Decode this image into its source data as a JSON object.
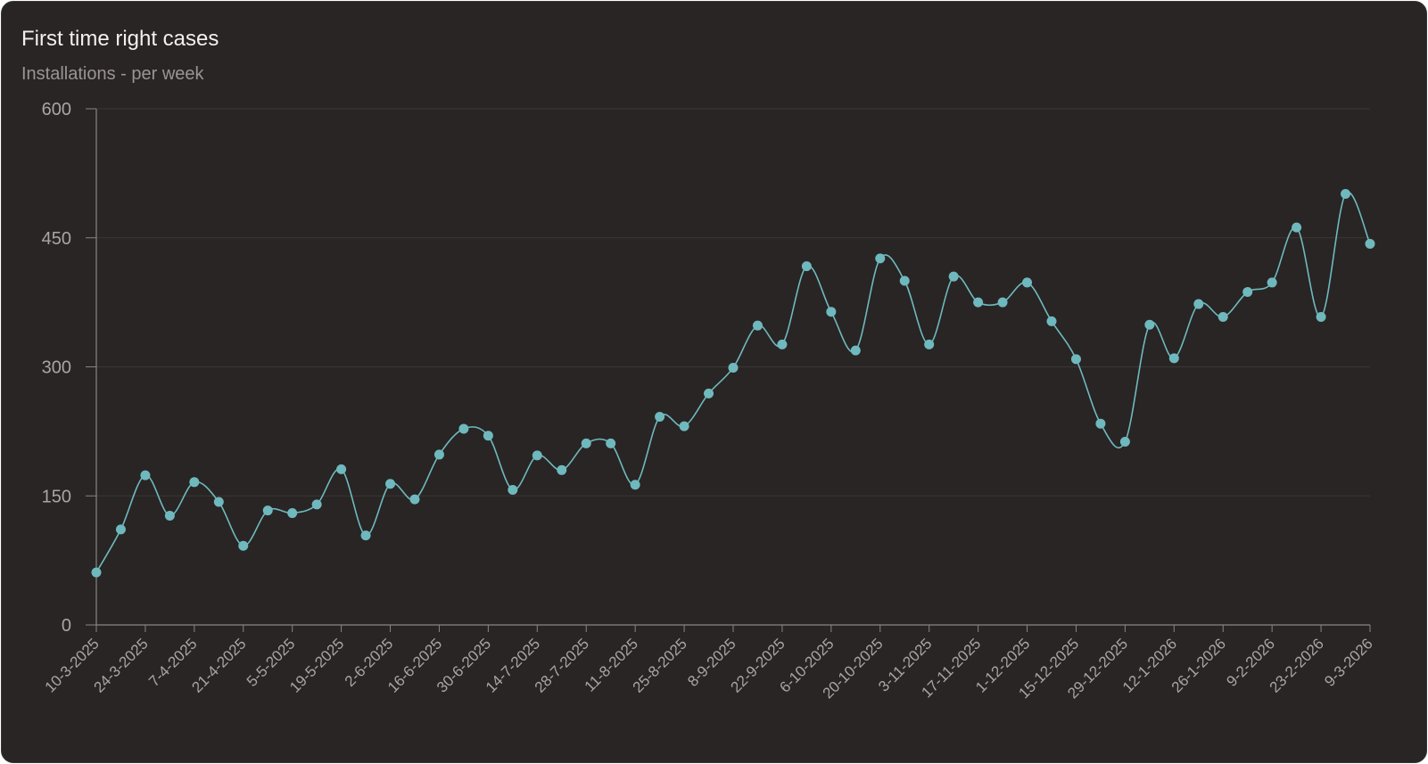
{
  "header": {
    "title": "First time right cases",
    "subtitle": "Installations - per week"
  },
  "colors": {
    "background": "#282524",
    "line": "#6fb9be",
    "grid": "#3a3735",
    "axis": "#8a8583",
    "text": "#aaa5a2"
  },
  "chart_data": {
    "type": "line",
    "title": "First time right cases",
    "subtitle": "Installations - per week",
    "xlabel": "",
    "ylabel": "",
    "ylim": [
      0,
      600
    ],
    "yticks": [
      0,
      150,
      300,
      450,
      600
    ],
    "grid": true,
    "x_tick_labels": [
      "10-3-2025",
      "24-3-2025",
      "7-4-2025",
      "21-4-2025",
      "5-5-2025",
      "19-5-2025",
      "2-6-2025",
      "16-6-2025",
      "30-6-2025",
      "14-7-2025",
      "28-7-2025",
      "11-8-2025",
      "25-8-2025",
      "8-9-2025",
      "22-9-2025",
      "6-10-2025",
      "20-10-2025",
      "3-11-2025",
      "17-11-2025",
      "1-12-2025",
      "15-12-2025",
      "29-12-2025",
      "12-1-2026",
      "26-1-2026",
      "9-2-2026",
      "23-2-2026",
      "9-3-2026"
    ],
    "x": [
      "10-3-2025",
      "17-3-2025",
      "24-3-2025",
      "31-3-2025",
      "7-4-2025",
      "14-4-2025",
      "21-4-2025",
      "28-4-2025",
      "5-5-2025",
      "12-5-2025",
      "19-5-2025",
      "26-5-2025",
      "2-6-2025",
      "9-6-2025",
      "16-6-2025",
      "23-6-2025",
      "30-6-2025",
      "7-7-2025",
      "14-7-2025",
      "21-7-2025",
      "28-7-2025",
      "4-8-2025",
      "11-8-2025",
      "18-8-2025",
      "25-8-2025",
      "1-9-2025",
      "8-9-2025",
      "15-9-2025",
      "22-9-2025",
      "29-9-2025",
      "6-10-2025",
      "13-10-2025",
      "20-10-2025",
      "27-10-2025",
      "3-11-2025",
      "10-11-2025",
      "17-11-2025",
      "24-11-2025",
      "1-12-2025",
      "8-12-2025",
      "15-12-2025",
      "22-12-2025",
      "29-12-2025",
      "5-1-2026",
      "12-1-2026",
      "19-1-2026",
      "26-1-2026",
      "2-2-2026",
      "9-2-2026",
      "16-2-2026",
      "23-2-2026",
      "2-3-2026",
      "9-3-2026"
    ],
    "series": [
      {
        "values": [
          61,
          111,
          174,
          127,
          166,
          143,
          92,
          133,
          130,
          140,
          181,
          104,
          164,
          146,
          198,
          228,
          220,
          157,
          197,
          180,
          211,
          211,
          163,
          242,
          231,
          269,
          299,
          348,
          326,
          417,
          364,
          319,
          426,
          400,
          326,
          405,
          375,
          375,
          398,
          353,
          309,
          234,
          213,
          349,
          310,
          373,
          358,
          387,
          398,
          462,
          358,
          501,
          443
        ]
      }
    ]
  }
}
